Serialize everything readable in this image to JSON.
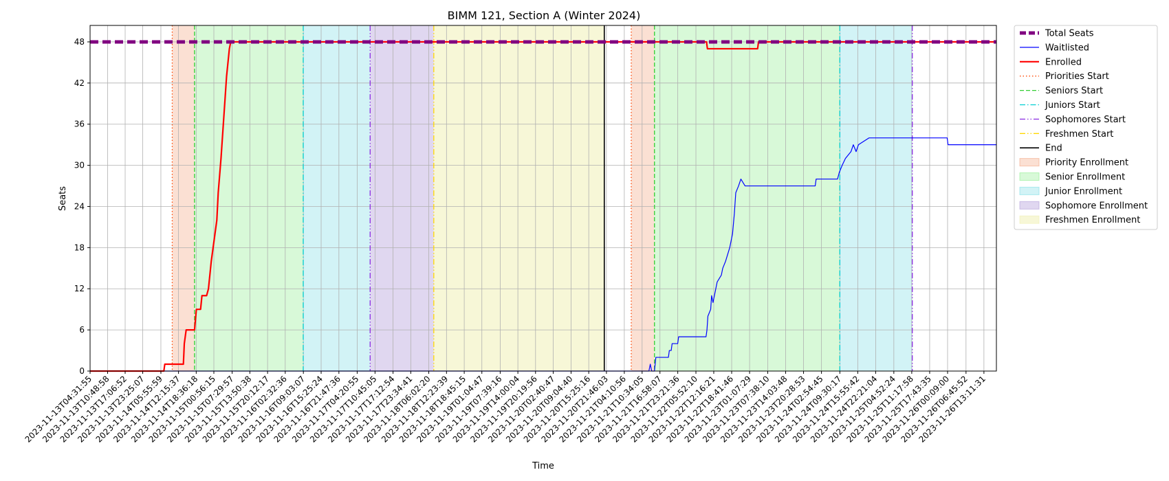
{
  "chart_data": {
    "type": "line",
    "title": "BIMM 121, Section A (Winter 2024)",
    "xlabel": "Time",
    "ylabel": "Seats",
    "ylim": [
      0,
      50.4
    ],
    "xlim": [
      "2023-11-13T04:31:55",
      "2023-11-26T17:40:00"
    ],
    "yticks": [
      0,
      6,
      12,
      18,
      24,
      30,
      36,
      42,
      48
    ],
    "grid": true,
    "legend_position": "outside-top-right",
    "xtick_labels": [
      "2023-11-13T04:31:55",
      "2023-11-13T10:48:58",
      "2023-11-13T17:06:52",
      "2023-11-13T23:25:07",
      "2023-11-14T05:55:59",
      "2023-11-14T12:15:37",
      "2023-11-14T18:36:18",
      "2023-11-15T00:56:15",
      "2023-11-15T07:29:57",
      "2023-11-15T13:50:38",
      "2023-11-15T20:12:17",
      "2023-11-16T02:32:36",
      "2023-11-16T09:03:07",
      "2023-11-16T15:25:24",
      "2023-11-16T21:47:36",
      "2023-11-17T04:20:55",
      "2023-11-17T10:45:05",
      "2023-11-17T17:12:54",
      "2023-11-17T23:34:41",
      "2023-11-18T06:02:20",
      "2023-11-18T12:23:39",
      "2023-11-18T18:45:15",
      "2023-11-19T01:04:47",
      "2023-11-19T07:39:16",
      "2023-11-19T14:00:04",
      "2023-11-19T20:19:56",
      "2023-11-20T02:40:47",
      "2023-11-20T09:04:40",
      "2023-11-20T15:25:16",
      "2023-11-20T21:46:03",
      "2023-11-21T04:10:56",
      "2023-11-21T10:34:05",
      "2023-11-21T16:58:07",
      "2023-11-21T23:21:36",
      "2023-11-22T05:52:10",
      "2023-11-22T12:16:21",
      "2023-11-22T18:41:46",
      "2023-11-23T01:07:29",
      "2023-11-23T07:38:10",
      "2023-11-23T14:03:48",
      "2023-11-23T20:28:53",
      "2023-11-24T02:54:45",
      "2023-11-24T09:30:17",
      "2023-11-24T15:55:42",
      "2023-11-24T22:21:04",
      "2023-11-25T04:52:24",
      "2023-11-25T11:17:58",
      "2023-11-25T17:43:35",
      "2023-11-26T00:09:00",
      "2023-11-26T06:45:52",
      "2023-11-26T13:11:31"
    ],
    "series": [
      {
        "name": "Total Seats",
        "color": "#800080",
        "style": "dashed-thick",
        "points": [
          [
            "2023-11-13T04:31:55",
            48
          ],
          [
            "2023-11-26T17:40:00",
            48
          ]
        ]
      },
      {
        "name": "Waitlisted",
        "color": "#0000ff",
        "style": "solid-thin",
        "points": [
          [
            "2023-11-13T04:31:55",
            0
          ],
          [
            "2023-11-21T13:00:00",
            0
          ],
          [
            "2023-11-21T13:30:00",
            1
          ],
          [
            "2023-11-21T14:00:00",
            0
          ],
          [
            "2023-11-21T15:00:00",
            0
          ],
          [
            "2023-11-21T15:30:00",
            2
          ],
          [
            "2023-11-21T20:00:00",
            2
          ],
          [
            "2023-11-21T20:20:00",
            3
          ],
          [
            "2023-11-21T21:00:00",
            3
          ],
          [
            "2023-11-21T21:20:00",
            4
          ],
          [
            "2023-11-21T23:20:00",
            4
          ],
          [
            "2023-11-21T23:40:00",
            5
          ],
          [
            "2023-11-22T09:30:00",
            5
          ],
          [
            "2023-11-22T09:50:00",
            6
          ],
          [
            "2023-11-22T10:10:00",
            8
          ],
          [
            "2023-11-22T11:10:00",
            9
          ],
          [
            "2023-11-22T11:30:00",
            11
          ],
          [
            "2023-11-22T12:00:00",
            10
          ],
          [
            "2023-11-22T13:00:00",
            12
          ],
          [
            "2023-11-22T13:30:00",
            13
          ],
          [
            "2023-11-22T15:00:00",
            14
          ],
          [
            "2023-11-22T15:30:00",
            15
          ],
          [
            "2023-11-22T16:30:00",
            16
          ],
          [
            "2023-11-22T18:00:00",
            18
          ],
          [
            "2023-11-22T19:00:00",
            20
          ],
          [
            "2023-11-22T19:40:00",
            23
          ],
          [
            "2023-11-22T20:10:00",
            26
          ],
          [
            "2023-11-22T21:10:00",
            27
          ],
          [
            "2023-11-22T22:00:00",
            28
          ],
          [
            "2023-11-22T23:30:00",
            27
          ],
          [
            "2023-11-24T00:40:00",
            27
          ],
          [
            "2023-11-24T01:00:00",
            28
          ],
          [
            "2023-11-24T08:40:00",
            28
          ],
          [
            "2023-11-24T09:20:00",
            29
          ],
          [
            "2023-11-24T10:20:00",
            30
          ],
          [
            "2023-11-24T11:30:00",
            31
          ],
          [
            "2023-11-24T13:30:00",
            32
          ],
          [
            "2023-11-24T14:20:00",
            33
          ],
          [
            "2023-11-24T15:20:00",
            32
          ],
          [
            "2023-11-24T16:10:00",
            33
          ],
          [
            "2023-11-24T20:00:00",
            34
          ],
          [
            "2023-11-26T00:00:00",
            34
          ],
          [
            "2023-11-26T00:20:00",
            33
          ],
          [
            "2023-11-26T17:40:00",
            33
          ]
        ]
      },
      {
        "name": "Enrolled",
        "color": "#ff0000",
        "style": "solid-thick",
        "points": [
          [
            "2023-11-13T04:31:55",
            0
          ],
          [
            "2023-11-14T07:00:00",
            0
          ],
          [
            "2023-11-14T07:20:00",
            1
          ],
          [
            "2023-11-14T14:00:00",
            1
          ],
          [
            "2023-11-14T14:20:00",
            4
          ],
          [
            "2023-11-14T15:00:00",
            6
          ],
          [
            "2023-11-14T18:00:00",
            6
          ],
          [
            "2023-11-14T18:40:00",
            9
          ],
          [
            "2023-11-14T20:10:00",
            9
          ],
          [
            "2023-11-14T20:40:00",
            11
          ],
          [
            "2023-11-14T22:20:00",
            11
          ],
          [
            "2023-11-14T23:00:00",
            12
          ],
          [
            "2023-11-15T00:00:00",
            16
          ],
          [
            "2023-11-15T02:00:00",
            22
          ],
          [
            "2023-11-15T02:30:00",
            26
          ],
          [
            "2023-11-15T03:30:00",
            31
          ],
          [
            "2023-11-15T05:00:00",
            40
          ],
          [
            "2023-11-15T05:30:00",
            43
          ],
          [
            "2023-11-15T06:30:00",
            47
          ],
          [
            "2023-11-15T07:00:00",
            48
          ],
          [
            "2023-11-22T09:40:00",
            48
          ],
          [
            "2023-11-22T10:00:00",
            47
          ],
          [
            "2023-11-23T04:00:00",
            47
          ],
          [
            "2023-11-23T04:20:00",
            48
          ],
          [
            "2023-11-26T17:40:00",
            48
          ]
        ]
      }
    ],
    "vertical_lines": [
      {
        "name": "Priorities Start",
        "color": "#ff4500",
        "style": "dotted",
        "x": [
          "2023-11-14T10:00:00",
          "2023-11-21T06:40:00"
        ]
      },
      {
        "name": "Seniors Start",
        "color": "#32cd32",
        "style": "dashed",
        "x": [
          "2023-11-14T18:00:00",
          "2023-11-21T15:00:00"
        ]
      },
      {
        "name": "Juniors Start",
        "color": "#00ced1",
        "style": "dashdot",
        "x": [
          "2023-11-16T09:00:00",
          "2023-11-24T09:30:00"
        ]
      },
      {
        "name": "Sophomores Start",
        "color": "#8a2be2",
        "style": "dashdotdot",
        "x": [
          "2023-11-17T09:00:00",
          "2023-11-25T11:30:00"
        ]
      },
      {
        "name": "Freshmen Start",
        "color": "#ffd700",
        "style": "dashdotdot",
        "x": [
          "2023-11-18T07:50:00"
        ]
      },
      {
        "name": "End",
        "color": "#000000",
        "style": "solid",
        "x": [
          "2023-11-20T21:00:00"
        ]
      }
    ],
    "shaded_regions": [
      {
        "name": "Priority Enrollment",
        "color": "#f4a582",
        "alpha": 0.35,
        "ranges": [
          [
            "2023-11-14T10:00:00",
            "2023-11-14T18:00:00"
          ],
          [
            "2023-11-21T06:40:00",
            "2023-11-21T15:00:00"
          ]
        ]
      },
      {
        "name": "Senior Enrollment",
        "color": "#90ee90",
        "alpha": 0.35,
        "ranges": [
          [
            "2023-11-14T18:00:00",
            "2023-11-16T09:00:00"
          ],
          [
            "2023-11-21T15:00:00",
            "2023-11-24T09:30:00"
          ]
        ]
      },
      {
        "name": "Junior Enrollment",
        "color": "#7fdde6",
        "alpha": 0.35,
        "ranges": [
          [
            "2023-11-16T09:00:00",
            "2023-11-17T09:00:00"
          ],
          [
            "2023-11-24T09:30:00",
            "2023-11-25T11:30:00"
          ]
        ]
      },
      {
        "name": "Sophomore Enrollment",
        "color": "#b19cd9",
        "alpha": 0.4,
        "ranges": [
          [
            "2023-11-17T09:00:00",
            "2023-11-18T07:50:00"
          ]
        ]
      },
      {
        "name": "Freshmen Enrollment",
        "color": "#f0f0b0",
        "alpha": 0.5,
        "ranges": [
          [
            "2023-11-18T07:50:00",
            "2023-11-20T21:00:00"
          ]
        ]
      }
    ],
    "legend": [
      {
        "label": "Total Seats",
        "kind": "line",
        "color": "#800080",
        "style": "dashed-thick"
      },
      {
        "label": "Waitlisted",
        "kind": "line",
        "color": "#0000ff",
        "style": "solid-thin"
      },
      {
        "label": "Enrolled",
        "kind": "line",
        "color": "#ff0000",
        "style": "solid-thick"
      },
      {
        "label": "Priorities Start",
        "kind": "line",
        "color": "#ff4500",
        "style": "dotted"
      },
      {
        "label": "Seniors Start",
        "kind": "line",
        "color": "#32cd32",
        "style": "dashed"
      },
      {
        "label": "Juniors Start",
        "kind": "line",
        "color": "#00ced1",
        "style": "dashdot"
      },
      {
        "label": "Sophomores Start",
        "kind": "line",
        "color": "#8a2be2",
        "style": "dashdotdot"
      },
      {
        "label": "Freshmen Start",
        "kind": "line",
        "color": "#ffd700",
        "style": "dashdotdot"
      },
      {
        "label": "End",
        "kind": "line",
        "color": "#000000",
        "style": "solid"
      },
      {
        "label": "Priority Enrollment",
        "kind": "patch",
        "color": "#f4a582",
        "alpha": 0.35
      },
      {
        "label": "Senior Enrollment",
        "kind": "patch",
        "color": "#90ee90",
        "alpha": 0.35
      },
      {
        "label": "Junior Enrollment",
        "kind": "patch",
        "color": "#7fdde6",
        "alpha": 0.35
      },
      {
        "label": "Sophomore Enrollment",
        "kind": "patch",
        "color": "#b19cd9",
        "alpha": 0.4
      },
      {
        "label": "Freshmen Enrollment",
        "kind": "patch",
        "color": "#f0f0b0",
        "alpha": 0.5
      }
    ]
  }
}
